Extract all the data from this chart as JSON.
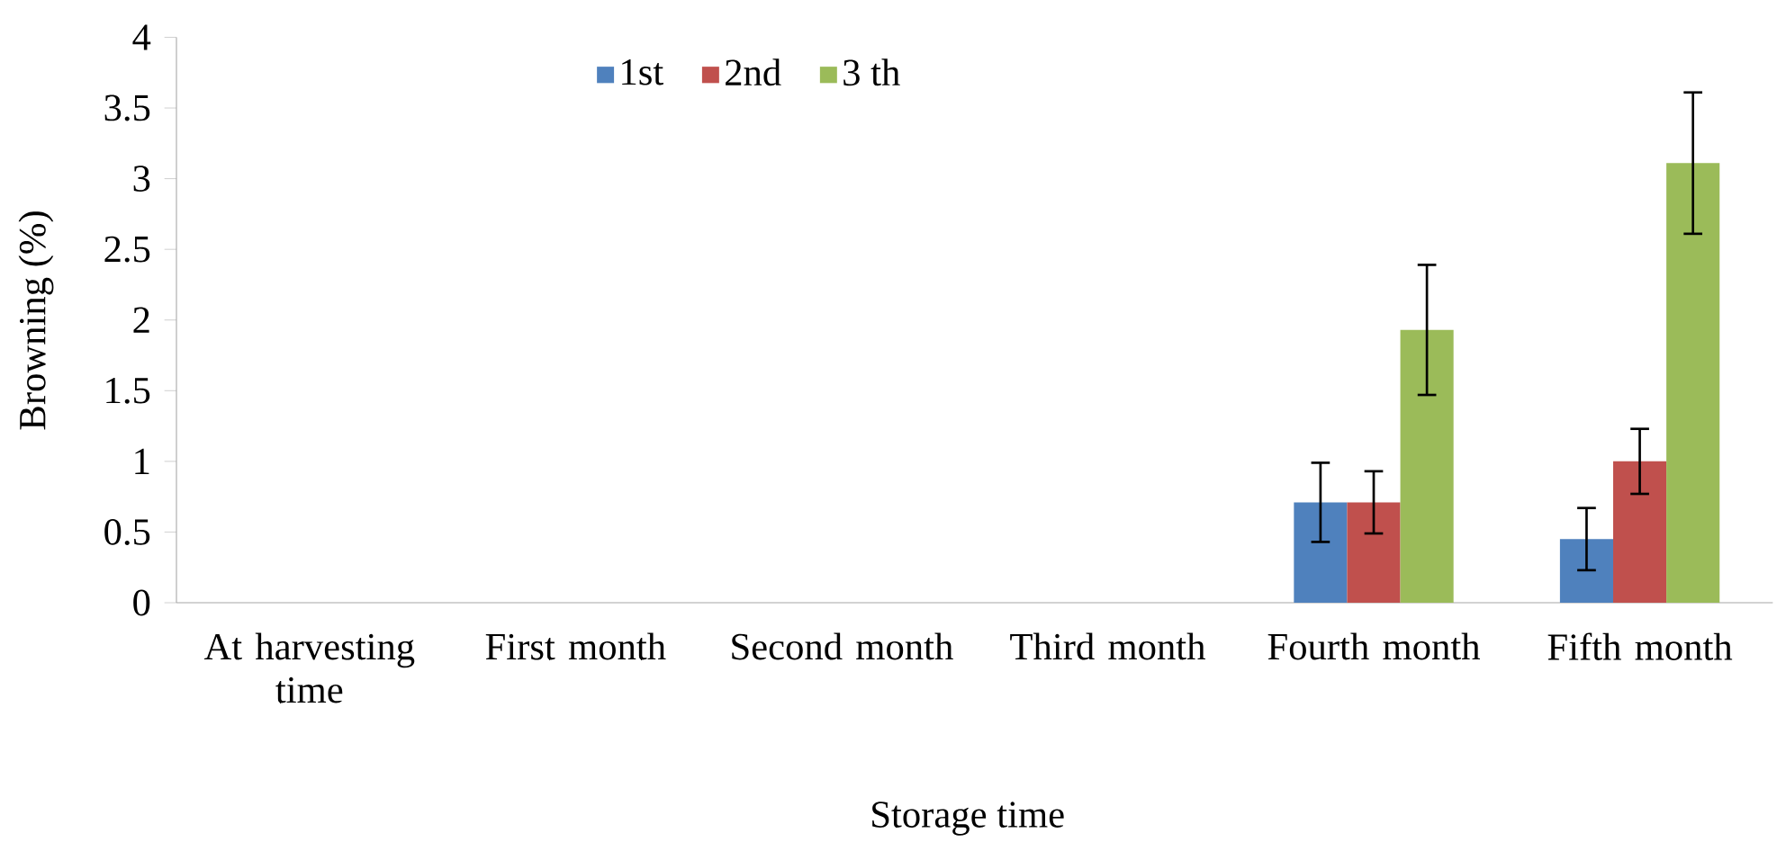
{
  "chart_data": {
    "type": "bar",
    "xlabel": "Storage time",
    "ylabel": "Browning (%)",
    "categories": [
      "At harvesting time",
      "First month",
      "Second month",
      "Third month",
      "Fourth month",
      "Fifth month"
    ],
    "series": [
      {
        "name": "1st",
        "color": "#4f81bd",
        "values": [
          null,
          null,
          null,
          null,
          0.71,
          0.45
        ],
        "errors": [
          null,
          null,
          null,
          null,
          0.28,
          0.22
        ]
      },
      {
        "name": "2nd",
        "color": "#c0504d",
        "values": [
          null,
          null,
          null,
          null,
          0.71,
          1.0
        ],
        "errors": [
          null,
          null,
          null,
          null,
          0.22,
          0.23
        ]
      },
      {
        "name": "3 th",
        "color": "#9bbb59",
        "values": [
          null,
          null,
          null,
          null,
          1.93,
          3.11
        ],
        "errors": [
          null,
          null,
          null,
          null,
          0.46,
          0.5
        ]
      }
    ],
    "ylim": [
      0,
      4
    ],
    "yticks": [
      0,
      0.5,
      1,
      1.5,
      2,
      2.5,
      3,
      3.5,
      4
    ],
    "legend": "top",
    "grid": false
  }
}
